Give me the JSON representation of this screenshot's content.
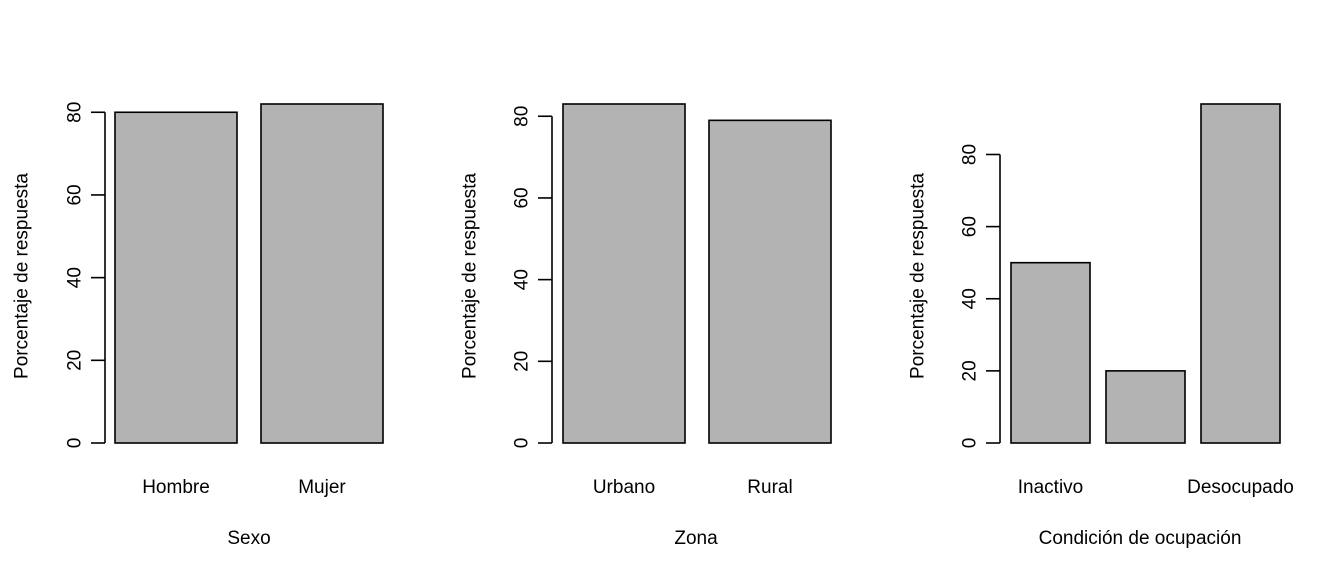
{
  "chart_data": [
    {
      "type": "bar",
      "categories": [
        "Hombre",
        "Mujer"
      ],
      "category_labels": [
        "Hombre",
        "Mujer"
      ],
      "values": [
        80,
        82
      ],
      "xlabel": "Sexo",
      "ylabel": "Porcentaje de respuesta",
      "ylim": [
        0,
        82
      ],
      "yticks": [
        0,
        20,
        40,
        60,
        80
      ],
      "ytick_labels": [
        "0",
        "20",
        "40",
        "60",
        "80"
      ],
      "bar_color": "#b3b3b3",
      "grid": false
    },
    {
      "type": "bar",
      "categories": [
        "Urbano",
        "Rural"
      ],
      "category_labels": [
        "Urbano",
        "Rural"
      ],
      "values": [
        83,
        79
      ],
      "xlabel": "Zona",
      "ylabel": "Porcentaje de respuesta",
      "ylim": [
        0,
        83
      ],
      "yticks": [
        0,
        20,
        40,
        60,
        80
      ],
      "ytick_labels": [
        "0",
        "20",
        "40",
        "60",
        "80"
      ],
      "bar_color": "#b3b3b3",
      "grid": false
    },
    {
      "type": "bar",
      "categories": [
        "Inactivo",
        "",
        "Desocupado"
      ],
      "category_labels": [
        "Inactivo",
        "",
        "Desocupado"
      ],
      "values": [
        50,
        20,
        94
      ],
      "xlabel": "Condición de ocupación",
      "ylabel": "Porcentaje de respuesta",
      "ylim": [
        0,
        94
      ],
      "yticks": [
        0,
        20,
        40,
        60,
        80
      ],
      "ytick_labels": [
        "0",
        "20",
        "40",
        "60",
        "80"
      ],
      "bar_color": "#b3b3b3",
      "grid": false
    }
  ]
}
